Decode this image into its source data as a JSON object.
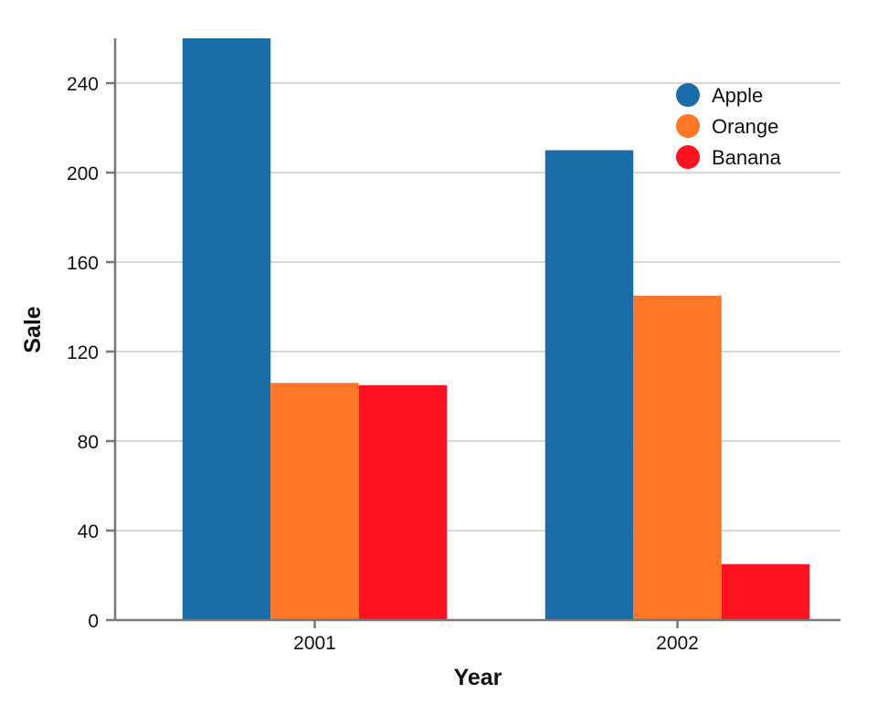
{
  "chart_data": {
    "type": "bar",
    "xlabel": "Year",
    "ylabel": "Sale",
    "categories": [
      "2001",
      "2002"
    ],
    "series": [
      {
        "name": "Apple",
        "color": "#1a6ca8",
        "values": [
          260,
          210
        ]
      },
      {
        "name": "Orange",
        "color": "#ff7626",
        "values": [
          106,
          145
        ]
      },
      {
        "name": "Banana",
        "color": "#ff111f",
        "values": [
          105,
          25
        ]
      }
    ],
    "y_ticks": [
      "0",
      "40",
      "80",
      "120",
      "160",
      "200",
      "240"
    ],
    "ylim": [
      0,
      260
    ],
    "grid": true,
    "legend_position": "top-right"
  }
}
